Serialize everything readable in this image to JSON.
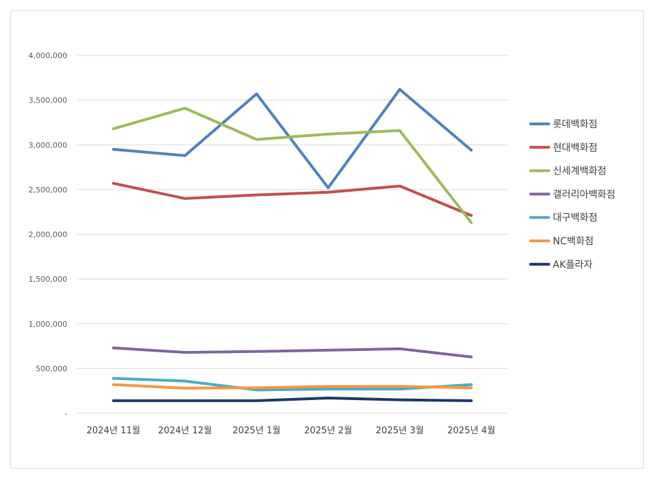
{
  "chart_data": {
    "type": "line",
    "categories": [
      "2024년 11월",
      "2024년 12월",
      "2025년 1월",
      "2025년 2월",
      "2025년 3월",
      "2025년 4월"
    ],
    "ylim": [
      0,
      4000000
    ],
    "y_ticks": [
      0,
      500000,
      1000000,
      1500000,
      2000000,
      2500000,
      3000000,
      3500000,
      4000000
    ],
    "y_tick_labels": [
      "-",
      "500,000",
      "1,000,000",
      "1,500,000",
      "2,000,000",
      "2,500,000",
      "3,000,000",
      "3,500,000",
      "4,000,000"
    ],
    "grid": true,
    "legend_position": "right",
    "series": [
      {
        "name": "롯데백화점",
        "color": "#4f81bd",
        "values": [
          2950000,
          2880000,
          3570000,
          2520000,
          3620000,
          2940000
        ]
      },
      {
        "name": "현대백화점",
        "color": "#c0504d",
        "values": [
          2570000,
          2400000,
          2440000,
          2470000,
          2540000,
          2210000
        ]
      },
      {
        "name": "신세계백화점",
        "color": "#9bbb59",
        "values": [
          3180000,
          3410000,
          3060000,
          3120000,
          3160000,
          2130000
        ]
      },
      {
        "name": "갤러리아백화점",
        "color": "#8064a2",
        "values": [
          730000,
          680000,
          690000,
          705000,
          720000,
          630000
        ]
      },
      {
        "name": "대구백화점",
        "color": "#4bacc6",
        "values": [
          390000,
          360000,
          260000,
          270000,
          270000,
          320000
        ]
      },
      {
        "name": "NC백화점",
        "color": "#f79646",
        "values": [
          320000,
          280000,
          285000,
          300000,
          300000,
          285000
        ]
      },
      {
        "name": "AK플라자",
        "color": "#1f3864",
        "values": [
          140000,
          140000,
          140000,
          170000,
          150000,
          140000
        ]
      }
    ]
  }
}
